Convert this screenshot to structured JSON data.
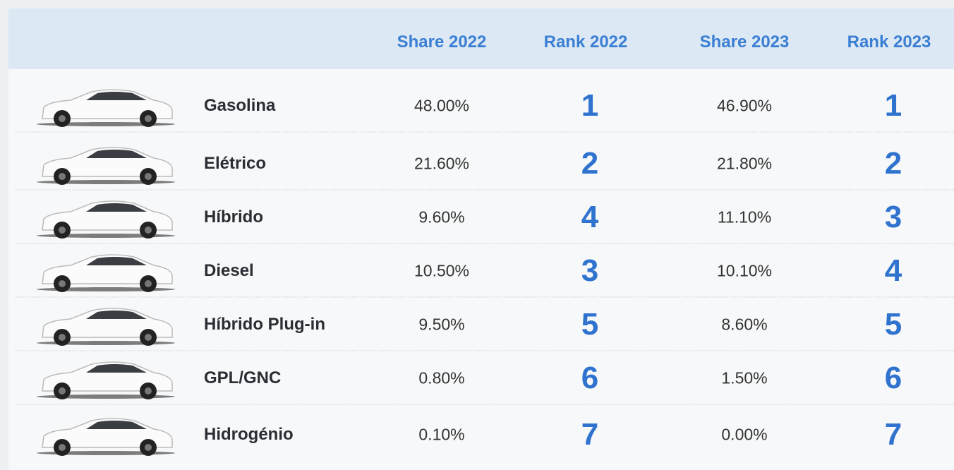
{
  "table": {
    "columns": [
      "Share 2022",
      "Rank 2022",
      "Share 2023",
      "Rank 2023"
    ],
    "rows": [
      [
        "Gasolina",
        "48.00%",
        1,
        "46.90%",
        1
      ],
      [
        "Elétrico",
        "21.60%",
        2,
        "21.80%",
        2
      ],
      [
        "Híbrido",
        "9.60%",
        4,
        "11.10%",
        3
      ],
      [
        "Diesel",
        "10.50%",
        3,
        "10.10%",
        4
      ],
      [
        "Híbrido Plug-in",
        "9.50%",
        5,
        "8.60%",
        5
      ],
      [
        "GPL/GNC",
        "0.80%",
        6,
        "1.50%",
        6
      ],
      [
        "Hidrogénio",
        "0.10%",
        7,
        "0.00%",
        7
      ]
    ]
  }
}
